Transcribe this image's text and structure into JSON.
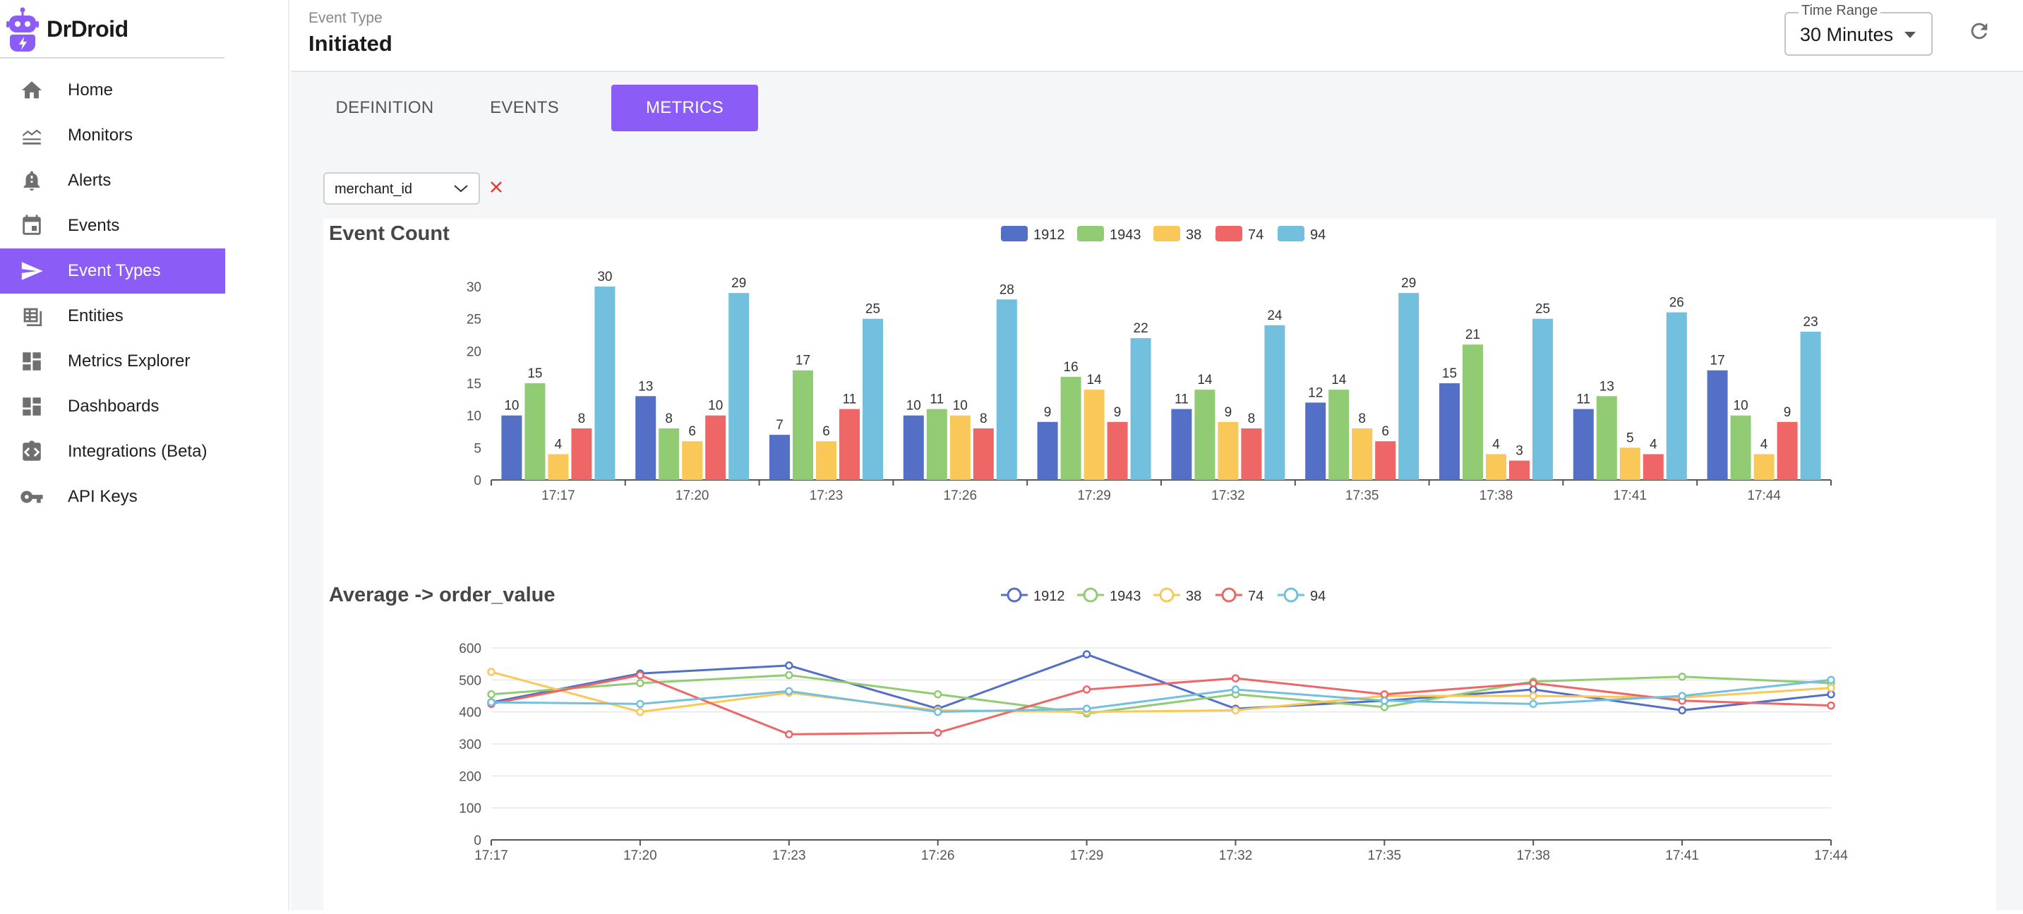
{
  "app": {
    "name": "DrDroid"
  },
  "sidebar": {
    "items": [
      {
        "label": "Home",
        "icon": "home-icon"
      },
      {
        "label": "Monitors",
        "icon": "monitor-lines-icon"
      },
      {
        "label": "Alerts",
        "icon": "bell-alert-icon"
      },
      {
        "label": "Events",
        "icon": "calendar-icon"
      },
      {
        "label": "Event Types",
        "icon": "send-icon",
        "active": true
      },
      {
        "label": "Entities",
        "icon": "table-icon"
      },
      {
        "label": "Metrics Explorer",
        "icon": "dashboard-grid-icon"
      },
      {
        "label": "Dashboards",
        "icon": "dashboard-grid-icon"
      },
      {
        "label": "Integrations (Beta)",
        "icon": "integration-icon"
      },
      {
        "label": "API Keys",
        "icon": "key-icon"
      }
    ]
  },
  "header": {
    "caption": "Event Type",
    "title": "Initiated",
    "time_range": {
      "label": "Time Range",
      "value": "30 Minutes"
    }
  },
  "tabs": [
    {
      "label": "DEFINITION",
      "active": false
    },
    {
      "label": "EVENTS",
      "active": false
    },
    {
      "label": "METRICS",
      "active": true
    }
  ],
  "filter": {
    "value": "merchant_id"
  },
  "colors": {
    "accent": "#8b5cf6",
    "series": [
      "#5470c6",
      "#91cc75",
      "#fac858",
      "#ee6666",
      "#73c0de"
    ],
    "clear": "#e53935"
  },
  "chart_data": [
    {
      "type": "bar",
      "title": "Event Count",
      "categories": [
        "17:17",
        "17:20",
        "17:23",
        "17:26",
        "17:29",
        "17:32",
        "17:35",
        "17:38",
        "17:41",
        "17:44"
      ],
      "ylim": [
        0,
        30
      ],
      "yticks": [
        0,
        5,
        10,
        15,
        20,
        25,
        30
      ],
      "legend_position": "top-center",
      "grid": false,
      "data_labels": true,
      "series": [
        {
          "name": "1912",
          "values": [
            10,
            13,
            7,
            10,
            9,
            11,
            12,
            15,
            11,
            17
          ]
        },
        {
          "name": "1943",
          "values": [
            15,
            8,
            17,
            11,
            16,
            14,
            14,
            21,
            13,
            10
          ]
        },
        {
          "name": "38",
          "values": [
            4,
            6,
            6,
            10,
            14,
            9,
            8,
            4,
            5,
            4
          ]
        },
        {
          "name": "74",
          "values": [
            8,
            10,
            11,
            8,
            9,
            8,
            6,
            3,
            4,
            9
          ]
        },
        {
          "name": "94",
          "values": [
            30,
            29,
            25,
            28,
            22,
            24,
            29,
            25,
            26,
            23
          ]
        }
      ]
    },
    {
      "type": "line",
      "title": "Average -> order_value",
      "categories": [
        "17:17",
        "17:20",
        "17:23",
        "17:26",
        "17:29",
        "17:32",
        "17:35",
        "17:38",
        "17:41",
        "17:44"
      ],
      "ylim": [
        0,
        600
      ],
      "yticks": [
        0,
        100,
        200,
        300,
        400,
        500,
        600
      ],
      "legend_position": "top-center",
      "grid": true,
      "series": [
        {
          "name": "1912",
          "values": [
            430,
            520,
            545,
            410,
            580,
            410,
            435,
            470,
            405,
            455
          ]
        },
        {
          "name": "1943",
          "values": [
            455,
            490,
            515,
            455,
            395,
            455,
            415,
            495,
            510,
            490
          ]
        },
        {
          "name": "38",
          "values": [
            525,
            400,
            460,
            405,
            400,
            405,
            450,
            450,
            445,
            475
          ]
        },
        {
          "name": "74",
          "values": [
            425,
            515,
            330,
            335,
            470,
            505,
            455,
            490,
            435,
            420
          ]
        },
        {
          "name": "94",
          "values": [
            430,
            425,
            465,
            400,
            410,
            470,
            435,
            425,
            450,
            500
          ]
        }
      ]
    }
  ]
}
